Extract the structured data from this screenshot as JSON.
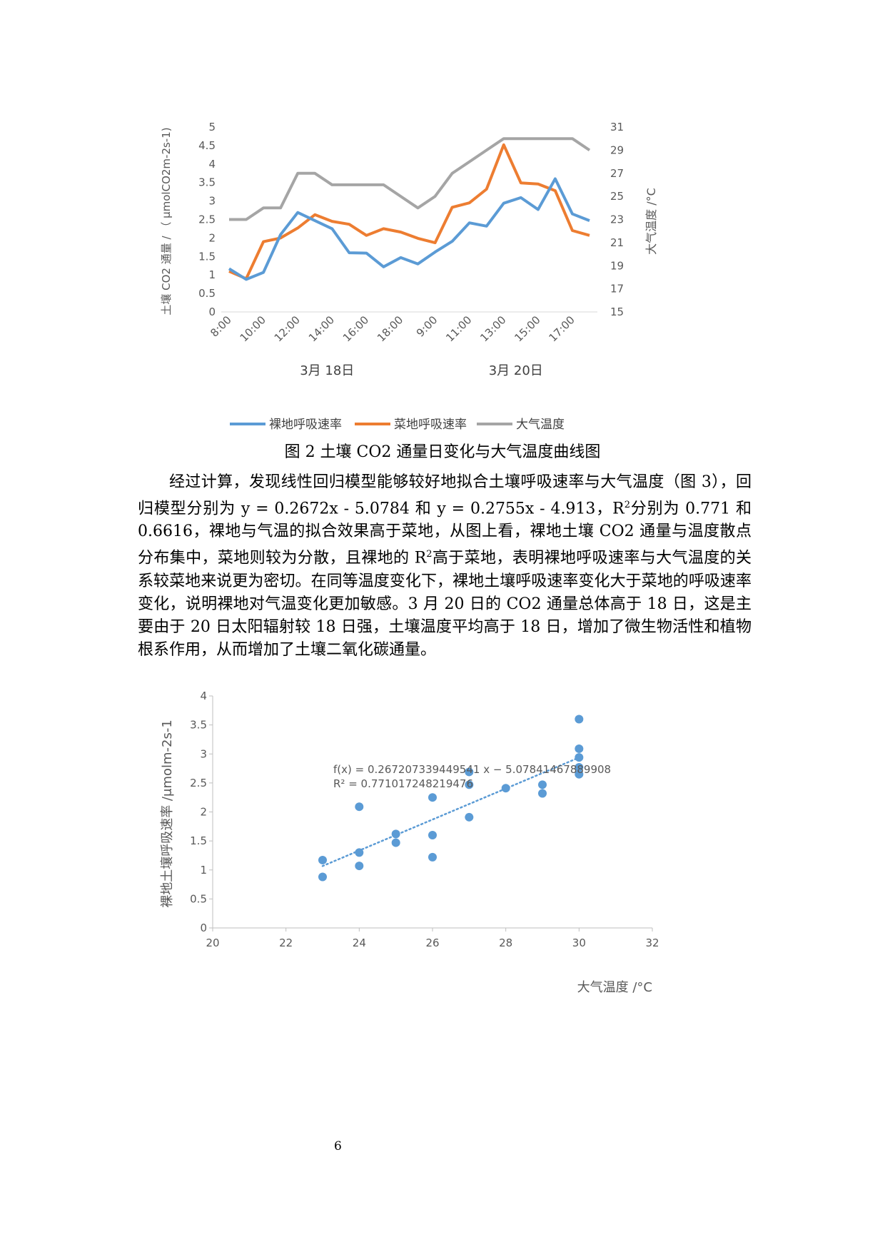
{
  "figure2": {
    "chart_data": {
      "type": "line",
      "categories": [
        "8:00",
        "9:00",
        "10:00",
        "11:00",
        "12:00",
        "13:00",
        "14:00",
        "15:00",
        "16:00",
        "17:00",
        "18:00",
        "19:00",
        "9:00",
        "10:00",
        "11:00",
        "12:00",
        "13:00",
        "14:00",
        "15:00",
        "16:00",
        "17:00",
        "18:00"
      ],
      "tick_labels": [
        "8:00",
        "10:00",
        "12:00",
        "14:00",
        "16:00",
        "18:00",
        "9:00",
        "11:00",
        "13:00",
        "15:00",
        "17:00"
      ],
      "group_labels": [
        "3月 18日",
        "3月 20日"
      ],
      "series": [
        {
          "name": "裸地呼吸速率",
          "axis": "left",
          "color": "#5B9BD5",
          "values": [
            1.17,
            0.88,
            1.07,
            2.09,
            2.69,
            2.47,
            2.25,
            1.6,
            1.59,
            1.22,
            1.47,
            1.3,
            1.62,
            1.91,
            2.41,
            2.32,
            2.94,
            3.09,
            2.77,
            3.6,
            2.65,
            2.47
          ]
        },
        {
          "name": "菜地呼吸速率",
          "axis": "left",
          "color": "#ED7D31",
          "values": [
            1.1,
            0.9,
            1.9,
            2.0,
            2.27,
            2.63,
            2.45,
            2.37,
            2.07,
            2.25,
            2.16,
            1.99,
            1.87,
            2.83,
            2.95,
            3.32,
            4.52,
            3.49,
            3.46,
            3.28,
            2.2,
            2.07
          ]
        },
        {
          "name": "大气温度",
          "axis": "right",
          "color": "#A5A5A5",
          "values": [
            23,
            23,
            24,
            24,
            27,
            27,
            26,
            26,
            26,
            26,
            25,
            24,
            25,
            27,
            28,
            29,
            30,
            30,
            30,
            30,
            30,
            29
          ]
        }
      ],
      "y_left": {
        "label": "土壤 CO2 通量 / （ μmolCO2m-2s-1)",
        "ylim": [
          0,
          5
        ],
        "ticks": [
          "0",
          "0.5",
          "1",
          "1.5",
          "2",
          "2.5",
          "3",
          "3.5",
          "4",
          "4.5",
          "5"
        ]
      },
      "y_right": {
        "label": "大气温度 /°C",
        "ylim": [
          15,
          31
        ],
        "ticks": [
          "15",
          "17",
          "19",
          "21",
          "23",
          "25",
          "27",
          "29",
          "31"
        ]
      },
      "legend_position": "bottom"
    }
  },
  "caption": "图 2 土壤 CO2 通量日变化与大气温度曲线图",
  "paragraph": {
    "p1": "经过计算，发现线性回归模型能够较好地拟合土壤呼吸速率与大气温度（图 3），回归模型分别为 y = 0.2672x - 5.0784 和 y = 0.2755x - 4.913，R",
    "sup1": "2",
    "p2": "分别为 0.771 和 0.6616，裸地与气温的拟合效果高于菜地，从图上看，裸地土壤 CO2 通量与温度散点分布集中，菜地则较为分散，且裸地的 R",
    "sup2": "2",
    "p3": "高于菜地，表明裸地呼吸速率与大气温度的关系较菜地来说更为密切。在同等温度变化下，裸地土壤呼吸速率变化大于菜地的呼吸速率变化，说明裸地对气温变化更加敏感。3 月 20 日的 CO2 通量总体高于 18 日，这是主要由于 20 日太阳辐射较 18 日强，土壤温度平均高于 18 日，增加了微生物活性和植物根系作用，从而增加了土壤二氧化碳通量。"
  },
  "figure3": {
    "chart_data": {
      "type": "scatter",
      "points": [
        [
          23,
          1.17
        ],
        [
          23,
          0.88
        ],
        [
          24,
          1.07
        ],
        [
          24,
          1.3
        ],
        [
          24,
          2.09
        ],
        [
          25,
          1.62
        ],
        [
          25,
          1.47
        ],
        [
          26,
          2.25
        ],
        [
          26,
          1.6
        ],
        [
          26,
          1.22
        ],
        [
          27,
          2.69
        ],
        [
          27,
          2.47
        ],
        [
          27,
          1.91
        ],
        [
          28,
          2.41
        ],
        [
          29,
          2.47
        ],
        [
          29,
          2.32
        ],
        [
          30,
          2.94
        ],
        [
          30,
          3.09
        ],
        [
          30,
          2.77
        ],
        [
          30,
          3.6
        ],
        [
          30,
          2.65
        ]
      ],
      "color": "#5B9BD5",
      "trendline": {
        "slope": 0.26720733944954,
        "intercept": -5.07841467889908,
        "x_range": [
          23,
          30
        ]
      },
      "equation": "f(x) = 0.26720733944954​1 x − 5.07841467889908",
      "r_squared": "R² = 0.771017248219476",
      "xlabel": "大气温度 /°C",
      "ylabel": "裸地土壤呼吸速率 /μmolm-2s-1",
      "xlim": [
        20,
        32
      ],
      "ylim": [
        0,
        4
      ],
      "xticks": [
        "20",
        "22",
        "24",
        "26",
        "28",
        "30",
        "32"
      ],
      "yticks": [
        "0",
        "0.5",
        "1",
        "1.5",
        "2",
        "2.5",
        "3",
        "3.5",
        "4"
      ]
    }
  },
  "page_number": "6"
}
